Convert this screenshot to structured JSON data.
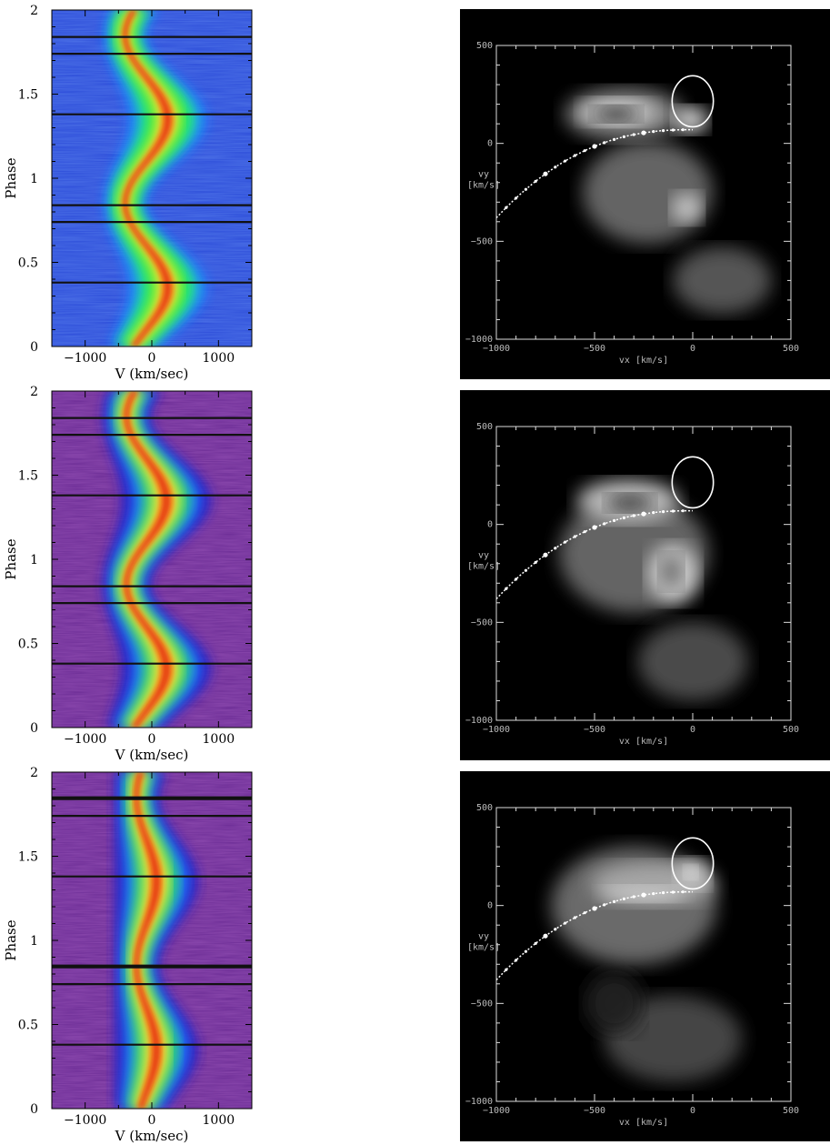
{
  "chart_data": [
    {
      "type": "heatmap",
      "xlabel": "V (km/sec)",
      "ylabel": "Phase",
      "xlim": [
        -1500,
        1500
      ],
      "ylim": [
        0,
        2
      ],
      "xticks": [
        "−1000",
        "0",
        "1000"
      ],
      "yticks": [
        "0",
        "0.5",
        "1",
        "1.5",
        "2"
      ],
      "gap_lines_phase": [
        0.38,
        0.74,
        0.84,
        1.38,
        1.74,
        1.84
      ],
      "colormap": [
        "#1e2ecf",
        "#1f86ff",
        "#22e0a0",
        "#30f030",
        "#f5e83a",
        "#ff8a1a",
        "#e01a10"
      ],
      "background": "#2a4ad8",
      "peak_velocity_kms": 320,
      "halfwidth_kms": 700
    },
    {
      "type": "heatmap",
      "xlabel": "vx [km/s]",
      "ylabel": "vy [km/s]",
      "xlim": [
        -1000,
        500
      ],
      "ylim": [
        -1000,
        500
      ],
      "xticks": [
        "−1000",
        "−500",
        "0",
        "500"
      ],
      "yticks": [
        "−1000",
        "−500",
        "0",
        "500"
      ],
      "colormap": "grayscale",
      "overlays": [
        "roche-lobe-circle",
        "ballistic-stream"
      ]
    },
    {
      "type": "heatmap",
      "xlabel": "V (km/sec)",
      "ylabel": "Phase",
      "xlim": [
        -1500,
        1500
      ],
      "ylim": [
        0,
        2
      ],
      "xticks": [
        "−1000",
        "0",
        "1000"
      ],
      "yticks": [
        "0",
        "0.5",
        "1",
        "1.5",
        "2"
      ],
      "gap_lines_phase": [
        0.38,
        0.74,
        0.84,
        1.38,
        1.74,
        1.84
      ],
      "colormap": [
        "#5a1f8f",
        "#2222cc",
        "#1f86ff",
        "#30e060",
        "#f5e83a",
        "#ff8a1a",
        "#e01a10"
      ],
      "background": "#6a2b94",
      "peak_velocity_kms": 300,
      "halfwidth_kms": 800
    },
    {
      "type": "heatmap",
      "xlabel": "vx [km/s]",
      "ylabel": "vy [km/s]",
      "xlim": [
        -1000,
        500
      ],
      "ylim": [
        -1000,
        500
      ],
      "xticks": [
        "−1000",
        "−500",
        "0",
        "500"
      ],
      "yticks": [
        "−1000",
        "−500",
        "0",
        "500"
      ],
      "colormap": "grayscale",
      "overlays": [
        "roche-lobe-circle",
        "ballistic-stream"
      ]
    },
    {
      "type": "heatmap",
      "xlabel": "V (km/sec)",
      "ylabel": "Phase",
      "xlim": [
        -1500,
        1500
      ],
      "ylim": [
        0,
        2
      ],
      "xticks": [
        "−1000",
        "0",
        "1000"
      ],
      "yticks": [
        "0",
        "0.5",
        "1",
        "1.5",
        "2"
      ],
      "gap_lines_phase": [
        0.38,
        0.74,
        0.84,
        0.85,
        1.38,
        1.74,
        1.84,
        1.85
      ],
      "colormap": [
        "#5a1f8f",
        "#2222cc",
        "#1f86ff",
        "#30e060",
        "#f5e83a",
        "#ff8a1a",
        "#e01a10"
      ],
      "background": "#6a2b94",
      "peak_velocity_kms": 150,
      "halfwidth_kms": 750
    },
    {
      "type": "heatmap",
      "xlabel": "vx [km/s]",
      "ylabel": "vy [km/s]",
      "xlim": [
        -1000,
        500
      ],
      "ylim": [
        -1000,
        500
      ],
      "xticks": [
        "−1000",
        "−500",
        "0",
        "500"
      ],
      "yticks": [
        "−1000",
        "−500",
        "0",
        "500"
      ],
      "colormap": "grayscale",
      "overlays": [
        "roche-lobe-circle",
        "ballistic-stream"
      ]
    }
  ]
}
